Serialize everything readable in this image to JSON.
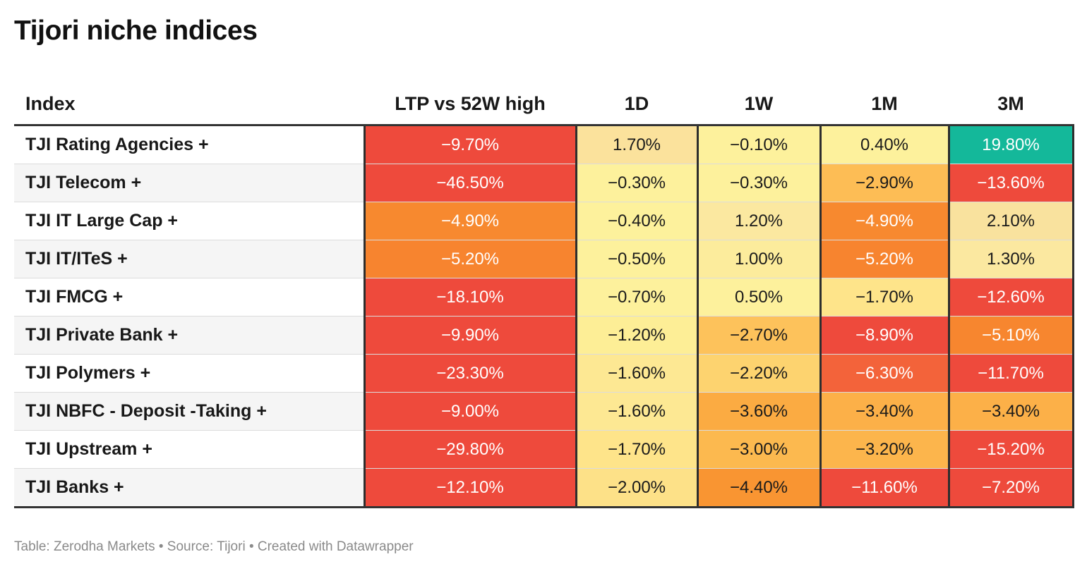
{
  "title": "Tijori niche indices",
  "footer": "Table: Zerodha Markets • Source: Tijori • Created with Datawrapper",
  "colors": {
    "deep_red": "#ee4a3c",
    "red_orange": "#f1613b",
    "orange": "#f7892f",
    "amber": "#fcae42",
    "light_amber": "#fdc864",
    "pale_yellow": "#fde68f",
    "cream": "#fbe29c",
    "teal": "#14b89a"
  },
  "chart_data": {
    "type": "table",
    "title": "Tijori niche indices",
    "columns": [
      "Index",
      "LTP vs 52W high",
      "1D",
      "1W",
      "1M",
      "3M"
    ],
    "rows": [
      {
        "name": "TJI Rating Agencies +",
        "cells": [
          {
            "text": "−9.70%",
            "value": -9.7,
            "color": "#ee4a3c",
            "fg": "#ffffff"
          },
          {
            "text": "1.70%",
            "value": 1.7,
            "color": "#fbe29c",
            "fg": "#1a1a1a"
          },
          {
            "text": "−0.10%",
            "value": -0.1,
            "color": "#fdf19c",
            "fg": "#1a1a1a"
          },
          {
            "text": "0.40%",
            "value": 0.4,
            "color": "#fdf19c",
            "fg": "#1a1a1a"
          },
          {
            "text": "19.80%",
            "value": 19.8,
            "color": "#14b89a",
            "fg": "#ffffff"
          }
        ]
      },
      {
        "name": "TJI Telecom +",
        "cells": [
          {
            "text": "−46.50%",
            "value": -46.5,
            "color": "#ee4a3c",
            "fg": "#ffffff"
          },
          {
            "text": "−0.30%",
            "value": -0.3,
            "color": "#fdf19c",
            "fg": "#1a1a1a"
          },
          {
            "text": "−0.30%",
            "value": -0.3,
            "color": "#fdf19c",
            "fg": "#1a1a1a"
          },
          {
            "text": "−2.90%",
            "value": -2.9,
            "color": "#fdbd55",
            "fg": "#1a1a1a"
          },
          {
            "text": "−13.60%",
            "value": -13.6,
            "color": "#ee4a3c",
            "fg": "#ffffff"
          }
        ]
      },
      {
        "name": "TJI IT Large Cap +",
        "cells": [
          {
            "text": "−4.90%",
            "value": -4.9,
            "color": "#f7892f",
            "fg": "#ffffff"
          },
          {
            "text": "−0.40%",
            "value": -0.4,
            "color": "#fdf19c",
            "fg": "#1a1a1a"
          },
          {
            "text": "1.20%",
            "value": 1.2,
            "color": "#fbe8a0",
            "fg": "#1a1a1a"
          },
          {
            "text": "−4.90%",
            "value": -4.9,
            "color": "#f7892f",
            "fg": "#ffffff"
          },
          {
            "text": "2.10%",
            "value": 2.1,
            "color": "#f9e29e",
            "fg": "#1a1a1a"
          }
        ]
      },
      {
        "name": "TJI IT/ITeS +",
        "cells": [
          {
            "text": "−5.20%",
            "value": -5.2,
            "color": "#f7842f",
            "fg": "#ffffff"
          },
          {
            "text": "−0.50%",
            "value": -0.5,
            "color": "#fdf19c",
            "fg": "#1a1a1a"
          },
          {
            "text": "1.00%",
            "value": 1.0,
            "color": "#fcec9c",
            "fg": "#1a1a1a"
          },
          {
            "text": "−5.20%",
            "value": -5.2,
            "color": "#f7842f",
            "fg": "#ffffff"
          },
          {
            "text": "1.30%",
            "value": 1.3,
            "color": "#fbe8a0",
            "fg": "#1a1a1a"
          }
        ]
      },
      {
        "name": "TJI FMCG +",
        "cells": [
          {
            "text": "−18.10%",
            "value": -18.1,
            "color": "#ee4a3c",
            "fg": "#ffffff"
          },
          {
            "text": "−0.70%",
            "value": -0.7,
            "color": "#fdf19c",
            "fg": "#1a1a1a"
          },
          {
            "text": "0.50%",
            "value": 0.5,
            "color": "#fdf19c",
            "fg": "#1a1a1a"
          },
          {
            "text": "−1.70%",
            "value": -1.7,
            "color": "#fee48a",
            "fg": "#1a1a1a"
          },
          {
            "text": "−12.60%",
            "value": -12.6,
            "color": "#ee4a3c",
            "fg": "#ffffff"
          }
        ]
      },
      {
        "name": "TJI Private Bank +",
        "cells": [
          {
            "text": "−9.90%",
            "value": -9.9,
            "color": "#ee4a3c",
            "fg": "#ffffff"
          },
          {
            "text": "−1.20%",
            "value": -1.2,
            "color": "#fdee96",
            "fg": "#1a1a1a"
          },
          {
            "text": "−2.70%",
            "value": -2.7,
            "color": "#fdc25b",
            "fg": "#1a1a1a"
          },
          {
            "text": "−8.90%",
            "value": -8.9,
            "color": "#ee4a3c",
            "fg": "#ffffff"
          },
          {
            "text": "−5.10%",
            "value": -5.1,
            "color": "#f7862f",
            "fg": "#ffffff"
          }
        ]
      },
      {
        "name": "TJI Polymers +",
        "cells": [
          {
            "text": "−23.30%",
            "value": -23.3,
            "color": "#ee4a3c",
            "fg": "#ffffff"
          },
          {
            "text": "−1.60%",
            "value": -1.6,
            "color": "#fde893",
            "fg": "#1a1a1a"
          },
          {
            "text": "−2.20%",
            "value": -2.2,
            "color": "#fdd36f",
            "fg": "#1a1a1a"
          },
          {
            "text": "−6.30%",
            "value": -6.3,
            "color": "#f3633a",
            "fg": "#ffffff"
          },
          {
            "text": "−11.70%",
            "value": -11.7,
            "color": "#ee4a3c",
            "fg": "#ffffff"
          }
        ]
      },
      {
        "name": "TJI NBFC - Deposit -Taking +",
        "cells": [
          {
            "text": "−9.00%",
            "value": -9.0,
            "color": "#ee4a3c",
            "fg": "#ffffff"
          },
          {
            "text": "−1.60%",
            "value": -1.6,
            "color": "#fde893",
            "fg": "#1a1a1a"
          },
          {
            "text": "−3.60%",
            "value": -3.6,
            "color": "#fbab42",
            "fg": "#1a1a1a"
          },
          {
            "text": "−3.40%",
            "value": -3.4,
            "color": "#fcb048",
            "fg": "#1a1a1a"
          },
          {
            "text": "−3.40%",
            "value": -3.4,
            "color": "#fcb048",
            "fg": "#1a1a1a"
          }
        ]
      },
      {
        "name": "TJI Upstream +",
        "cells": [
          {
            "text": "−29.80%",
            "value": -29.8,
            "color": "#ee4a3c",
            "fg": "#ffffff"
          },
          {
            "text": "−1.70%",
            "value": -1.7,
            "color": "#fee48a",
            "fg": "#1a1a1a"
          },
          {
            "text": "−3.00%",
            "value": -3.0,
            "color": "#fcb94f",
            "fg": "#1a1a1a"
          },
          {
            "text": "−3.20%",
            "value": -3.2,
            "color": "#fcb54c",
            "fg": "#1a1a1a"
          },
          {
            "text": "−15.20%",
            "value": -15.2,
            "color": "#ee4a3c",
            "fg": "#ffffff"
          }
        ]
      },
      {
        "name": "TJI Banks +",
        "cells": [
          {
            "text": "−12.10%",
            "value": -12.1,
            "color": "#ee4a3c",
            "fg": "#ffffff"
          },
          {
            "text": "−2.00%",
            "value": -2.0,
            "color": "#fde188",
            "fg": "#1a1a1a"
          },
          {
            "text": "−4.40%",
            "value": -4.4,
            "color": "#f99532",
            "fg": "#1a1a1a"
          },
          {
            "text": "−11.60%",
            "value": -11.6,
            "color": "#ee4a3c",
            "fg": "#ffffff"
          },
          {
            "text": "−7.20%",
            "value": -7.2,
            "color": "#ee4a3c",
            "fg": "#ffffff"
          }
        ]
      }
    ]
  }
}
